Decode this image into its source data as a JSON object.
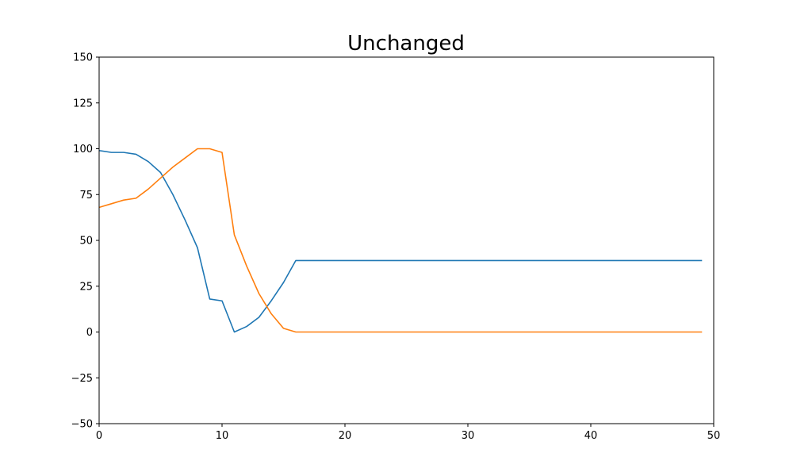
{
  "chart_data": {
    "type": "line",
    "title": "Unchanged",
    "xlabel": "",
    "ylabel": "",
    "xlim": [
      0,
      50
    ],
    "ylim": [
      -50,
      150
    ],
    "x_ticks": [
      0,
      10,
      20,
      30,
      40,
      50
    ],
    "x_tick_labels": [
      "0",
      "10",
      "20",
      "30",
      "40",
      "50"
    ],
    "y_ticks": [
      -50,
      -25,
      0,
      25,
      50,
      75,
      100,
      125,
      150
    ],
    "y_tick_labels": [
      "−50",
      "−25",
      "0",
      "25",
      "50",
      "75",
      "100",
      "125",
      "150"
    ],
    "grid": false,
    "x": [
      0,
      1,
      2,
      3,
      4,
      5,
      6,
      7,
      8,
      9,
      10,
      11,
      12,
      13,
      14,
      15,
      16,
      17,
      18,
      19,
      20,
      21,
      22,
      23,
      24,
      25,
      26,
      27,
      28,
      29,
      30,
      31,
      32,
      33,
      34,
      35,
      36,
      37,
      38,
      39,
      40,
      41,
      42,
      43,
      44,
      45,
      46,
      47,
      48,
      49
    ],
    "series": [
      {
        "color": "#1f77b4",
        "values": [
          99,
          98,
          98,
          97,
          93,
          87,
          75,
          61,
          46,
          18,
          17,
          0,
          3,
          8,
          17,
          27,
          39,
          39,
          39,
          39,
          39,
          39,
          39,
          39,
          39,
          39,
          39,
          39,
          39,
          39,
          39,
          39,
          39,
          39,
          39,
          39,
          39,
          39,
          39,
          39,
          39,
          39,
          39,
          39,
          39,
          39,
          39,
          39,
          39,
          39
        ]
      },
      {
        "color": "#ff7f0e",
        "values": [
          68,
          70,
          72,
          73,
          78,
          84,
          90,
          95,
          100,
          100,
          98,
          53,
          36,
          21,
          10,
          2,
          0,
          0,
          0,
          0,
          0,
          0,
          0,
          0,
          0,
          0,
          0,
          0,
          0,
          0,
          0,
          0,
          0,
          0,
          0,
          0,
          0,
          0,
          0,
          0,
          0,
          0,
          0,
          0,
          0,
          0,
          0,
          0,
          0,
          0
        ]
      }
    ]
  }
}
